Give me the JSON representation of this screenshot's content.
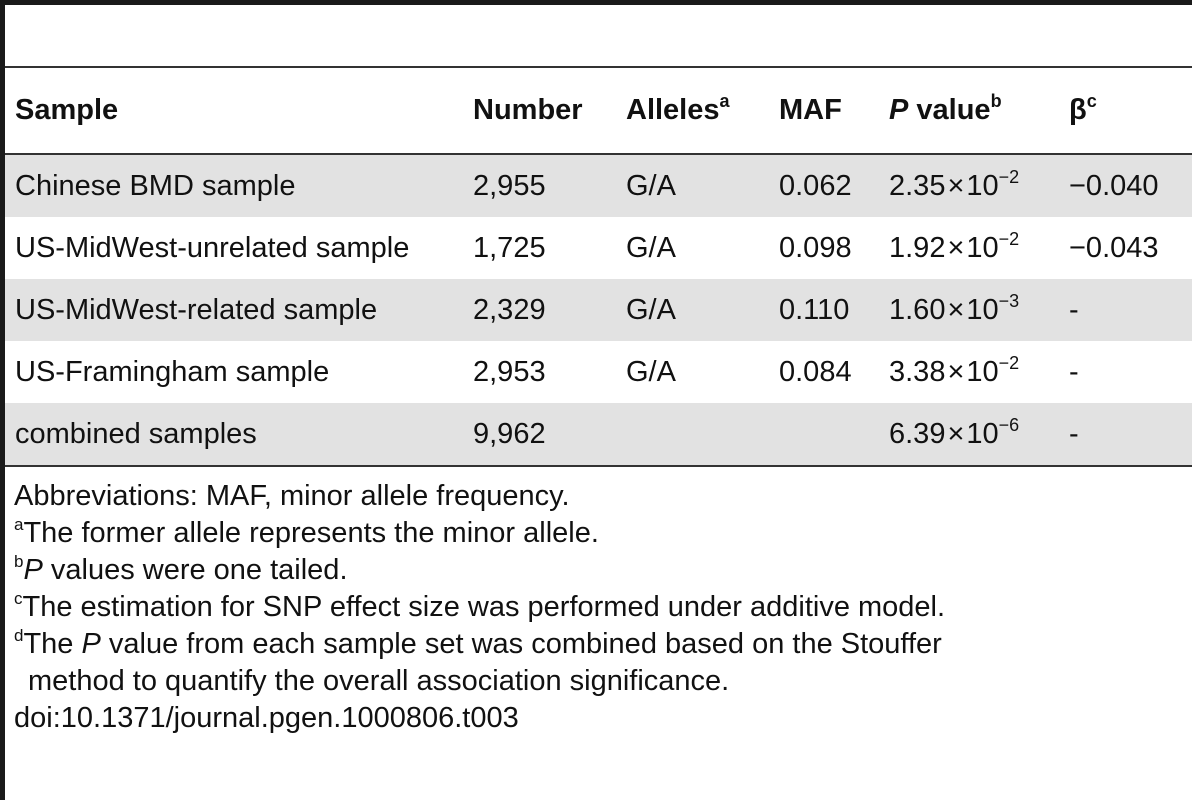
{
  "table": {
    "headers": {
      "sample": "Sample",
      "number": "Number",
      "alleles": "Alleles",
      "alleles_sup": "a",
      "maf": "MAF",
      "pvalue_italic": "P",
      "pvalue_rest": " value",
      "pvalue_sup": "b",
      "beta": "β",
      "beta_sup": "c"
    },
    "rows": [
      {
        "sample": "Chinese BMD sample",
        "number": "2,955",
        "alleles": "G/A",
        "maf": "0.062",
        "p_mantissa": "2.35",
        "p_times": "×",
        "p_exp_base": "10",
        "p_exp": "−2",
        "beta": "−0.040"
      },
      {
        "sample": "US-MidWest-unrelated sample",
        "number": "1,725",
        "alleles": "G/A",
        "maf": "0.098",
        "p_mantissa": "1.92",
        "p_times": "×",
        "p_exp_base": "10",
        "p_exp": "−2",
        "beta": "−0.043"
      },
      {
        "sample": "US-MidWest-related sample",
        "number": "2,329",
        "alleles": "G/A",
        "maf": "0.110",
        "p_mantissa": "1.60",
        "p_times": "×",
        "p_exp_base": "10",
        "p_exp": "−3",
        "beta": "-"
      },
      {
        "sample": "US-Framingham sample",
        "number": "2,953",
        "alleles": "G/A",
        "maf": "0.084",
        "p_mantissa": "3.38",
        "p_times": "×",
        "p_exp_base": "10",
        "p_exp": "−2",
        "beta": "-"
      },
      {
        "sample": "combined samples",
        "number": "9,962",
        "alleles": "",
        "maf": "",
        "p_mantissa": "6.39",
        "p_times": "×",
        "p_exp_base": "10",
        "p_exp": "−6",
        "beta": "-"
      }
    ]
  },
  "footnotes": {
    "abbrev": "Abbreviations: MAF, minor allele frequency.",
    "a_mark": "a",
    "a_text": "The former allele represents the minor allele.",
    "b_mark": "b",
    "b_italic": "P",
    "b_text": " values were one tailed.",
    "c_mark": "c",
    "c_text": "The estimation for SNP effect size was performed under additive model.",
    "d_mark": "d",
    "d_text_1": "The ",
    "d_italic": "P",
    "d_text_2": " value from each sample set was combined based on the Stouffer",
    "d_text_3": "method to quantify the overall association significance.",
    "doi": "doi:10.1371/journal.pgen.1000806.t003"
  }
}
